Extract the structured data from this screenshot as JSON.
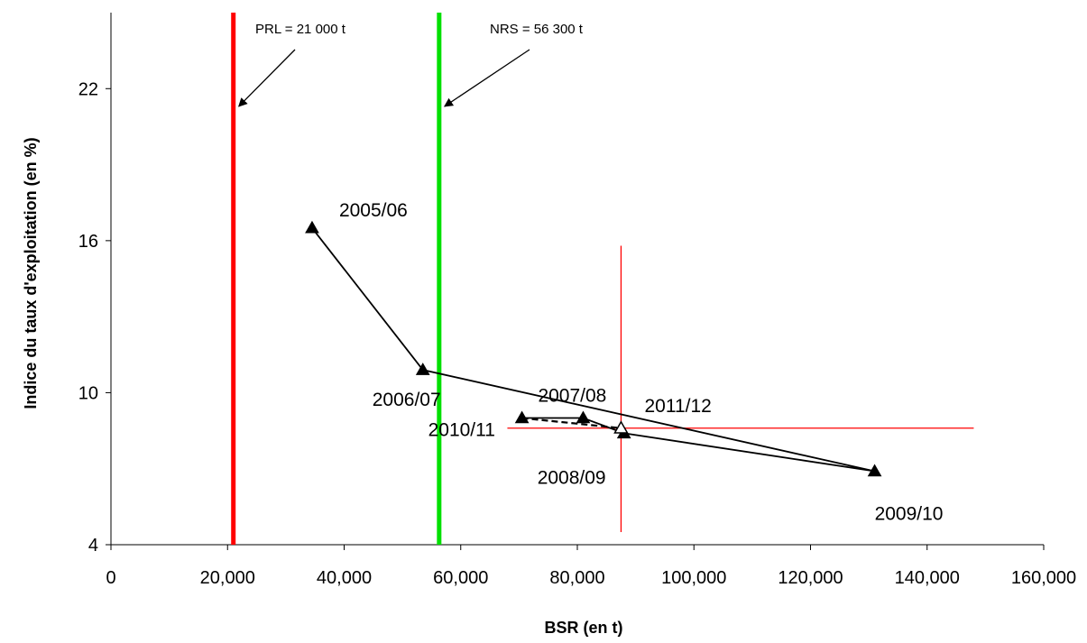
{
  "chart_data": {
    "type": "line",
    "title": "",
    "xlabel": "BSR (en t)",
    "ylabel": "Indice du taux d'exploitation (en %)",
    "xlim": [
      0,
      160000
    ],
    "ylim": [
      4,
      25
    ],
    "x_tick_values": [
      0,
      20000,
      40000,
      60000,
      80000,
      100000,
      120000,
      140000,
      160000
    ],
    "x_tick_labels": [
      "0",
      "20,000",
      "40,000",
      "60,000",
      "80,000",
      "100,000",
      "120,000",
      "140,000",
      "160,000"
    ],
    "y_tick_values": [
      4,
      10,
      16,
      22
    ],
    "y_tick_labels": [
      "4",
      "10",
      "16",
      "22"
    ],
    "grid": false,
    "series": [
      {
        "marker": "triangle",
        "color": "#000000",
        "points": [
          {
            "label": "2005/06",
            "x": 34500,
            "y": 16.5
          },
          {
            "label": "2006/07",
            "x": 53500,
            "y": 10.9
          },
          {
            "label": "2009/10",
            "x": 131000,
            "y": 6.9
          },
          {
            "label": "2008/09",
            "x": 88000,
            "y": 8.4
          },
          {
            "label": "2007/08",
            "x": 81000,
            "y": 9.0
          },
          {
            "label": "2010/11",
            "x": 70500,
            "y": 9.0
          }
        ]
      },
      {
        "marker": "open-triangle",
        "style": "dashed",
        "color": "#000000",
        "points": [
          {
            "x": 70500,
            "y": 9.0
          },
          {
            "label": "2011/12",
            "x": 87500,
            "y": 8.6
          }
        ]
      }
    ],
    "reference_lines": [
      {
        "label": "PRL = 21 000 t",
        "orientation": "vertical",
        "x": 21000,
        "color": "#ff0000"
      },
      {
        "label": "NRS = 56 300 t",
        "orientation": "vertical",
        "x": 56300,
        "color": "#00e000"
      }
    ],
    "crosshair": {
      "color": "#ff0000",
      "x": 87500,
      "y_range": [
        4.5,
        15.8
      ],
      "y": 8.6,
      "x_range": [
        68000,
        148000
      ]
    }
  }
}
